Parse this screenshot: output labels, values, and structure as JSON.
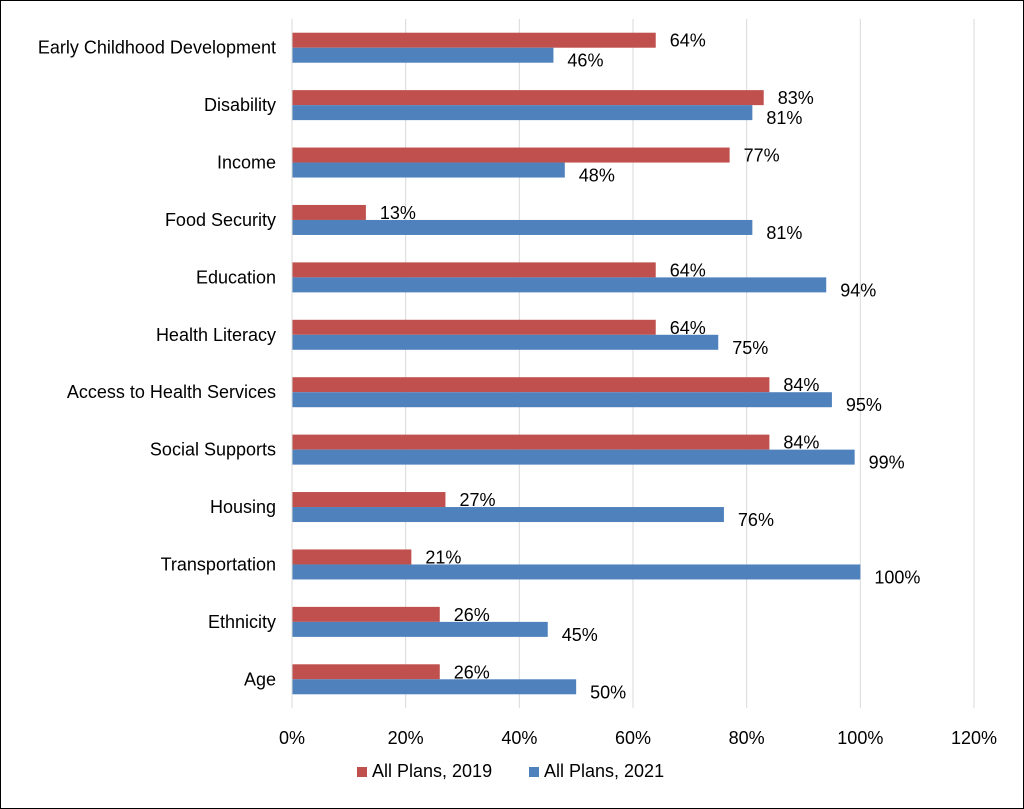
{
  "chart_data": {
    "type": "bar",
    "orientation": "horizontal",
    "categories": [
      "Early Childhood Development",
      "Disability",
      "Income",
      "Food Security",
      "Education",
      "Health Literacy",
      "Access to Health Services",
      "Social Supports",
      "Housing",
      "Transportation",
      "Ethnicity",
      "Age"
    ],
    "series": [
      {
        "name": "All Plans, 2019",
        "color": "#c0504d",
        "values": [
          64,
          83,
          77,
          13,
          64,
          64,
          84,
          84,
          27,
          21,
          26,
          26
        ],
        "labels": [
          "64%",
          "83%",
          "77%",
          "13%",
          "64%",
          "64%",
          "84%",
          "84%",
          "27%",
          "21%",
          "26%",
          "26%"
        ]
      },
      {
        "name": "All Plans, 2021",
        "color": "#4f81bd",
        "values": [
          46,
          81,
          48,
          81,
          94,
          75,
          95,
          99,
          76,
          100,
          45,
          50
        ],
        "labels": [
          "46%",
          "81%",
          "48%",
          "81%",
          "94%",
          "75%",
          "95%",
          "99%",
          "76%",
          "100%",
          "45%",
          "50%"
        ]
      }
    ],
    "xlim": [
      0,
      120
    ],
    "x_ticks": [
      0,
      20,
      40,
      60,
      80,
      100,
      120
    ],
    "x_tick_labels": [
      "0%",
      "20%",
      "40%",
      "60%",
      "80%",
      "100%",
      "120%"
    ],
    "grid": "vertical",
    "legend": "bottom",
    "title": "",
    "xlabel": "",
    "ylabel": ""
  }
}
